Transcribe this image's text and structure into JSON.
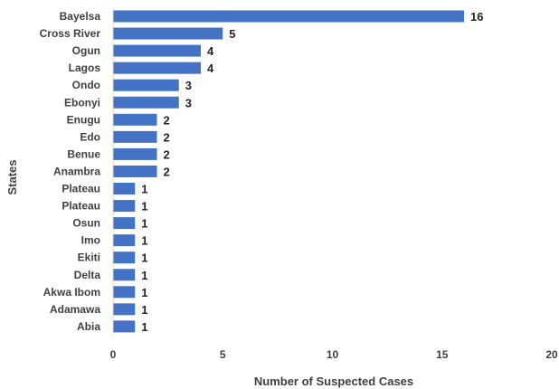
{
  "chart_data": {
    "type": "bar",
    "orientation": "horizontal",
    "categories": [
      "Bayelsa",
      "Cross River",
      "Ogun",
      "Lagos",
      "Ondo",
      "Ebonyi",
      "Enugu",
      "Edo",
      "Benue",
      "Anambra",
      "Plateau",
      "Plateau",
      "Osun",
      "Imo",
      "Ekiti",
      "Delta",
      "Akwa Ibom",
      "Adamawa",
      "Abia"
    ],
    "values": [
      16,
      5,
      4,
      4,
      3,
      3,
      2,
      2,
      2,
      2,
      1,
      1,
      1,
      1,
      1,
      1,
      1,
      1,
      1
    ],
    "xlabel": "Number of Suspected Cases",
    "ylabel": "States",
    "xlim": [
      0,
      20
    ],
    "xticks": [
      0,
      5,
      10,
      15,
      20
    ],
    "grid": false,
    "data_labels": true,
    "bar_color": "#4472C4"
  }
}
